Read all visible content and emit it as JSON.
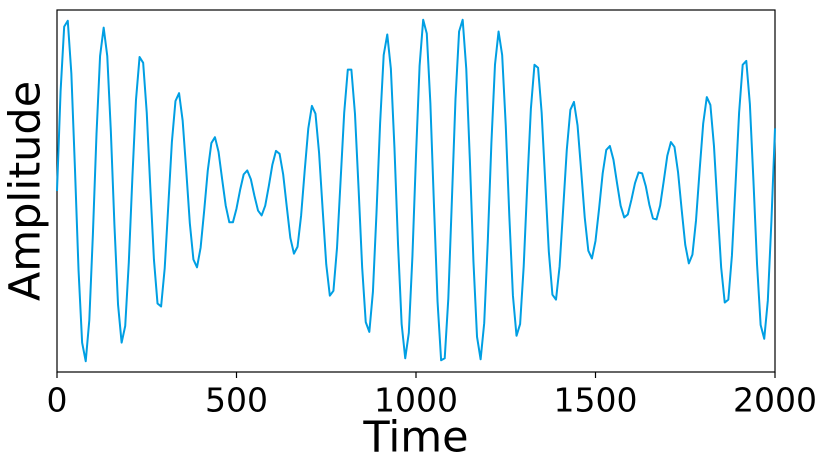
{
  "chart_data": {
    "type": "line",
    "xlabel": "Time",
    "ylabel": "Amplitude",
    "color": "#009fe3",
    "xlim": [
      0,
      2000
    ],
    "xticks": [
      0,
      500,
      1000,
      1500,
      2000
    ],
    "ylim": [
      -1.85,
      1.85
    ],
    "x": [
      0,
      10,
      20,
      30,
      40,
      50,
      60,
      70,
      80,
      90,
      100,
      110,
      120,
      130,
      140,
      150,
      160,
      170,
      180,
      190,
      200,
      210,
      220,
      230,
      240,
      250,
      260,
      270,
      280,
      290,
      300,
      310,
      320,
      330,
      340,
      350,
      360,
      370,
      380,
      390,
      400,
      410,
      420,
      430,
      440,
      450,
      460,
      470,
      480,
      490,
      500,
      510,
      520,
      530,
      540,
      550,
      560,
      570,
      580,
      590,
      600,
      610,
      620,
      630,
      640,
      650,
      660,
      670,
      680,
      690,
      700,
      710,
      720,
      730,
      740,
      750,
      760,
      770,
      780,
      790,
      800,
      810,
      820,
      830,
      840,
      850,
      860,
      870,
      880,
      890,
      900,
      910,
      920,
      930,
      940,
      950,
      960,
      970,
      980,
      990,
      1000,
      1010,
      1020,
      1030,
      1040,
      1050,
      1060,
      1070,
      1080,
      1090,
      1100,
      1110,
      1120,
      1130,
      1140,
      1150,
      1160,
      1170,
      1180,
      1190,
      1200,
      1210,
      1220,
      1230,
      1240,
      1250,
      1260,
      1270,
      1280,
      1290,
      1300,
      1310,
      1320,
      1330,
      1340,
      1350,
      1360,
      1370,
      1380,
      1390,
      1400,
      1410,
      1420,
      1430,
      1440,
      1450,
      1460,
      1470,
      1480,
      1490,
      1500,
      1510,
      1520,
      1530,
      1540,
      1550,
      1560,
      1570,
      1580,
      1590,
      1600,
      1610,
      1620,
      1630,
      1640,
      1650,
      1660,
      1670,
      1680,
      1690,
      1700,
      1710,
      1720,
      1730,
      1740,
      1750,
      1760,
      1770,
      1780,
      1790,
      1800,
      1810,
      1820,
      1830,
      1840,
      1850,
      1860,
      1870,
      1880,
      1890,
      1900,
      1910,
      1920,
      1930,
      1940,
      1950,
      1960,
      1970,
      1980,
      1990,
      2000
    ],
    "values": [
      0,
      1.02,
      1.68,
      1.74,
      1.2,
      0.23,
      -0.81,
      -1.55,
      -1.74,
      -1.32,
      -0.44,
      0.58,
      1.38,
      1.67,
      1.38,
      0.61,
      -0.35,
      -1.16,
      -1.55,
      -1.38,
      -0.73,
      0.14,
      0.93,
      1.37,
      1.31,
      0.8,
      0.03,
      -0.7,
      -1.15,
      -1.18,
      -0.79,
      -0.15,
      0.5,
      0.92,
      1.0,
      0.72,
      0.21,
      -0.33,
      -0.7,
      -0.78,
      -0.58,
      -0.2,
      0.21,
      0.49,
      0.55,
      0.4,
      0.12,
      -0.15,
      -0.32,
      -0.32,
      -0.18,
      0.01,
      0.17,
      0.21,
      0.12,
      -0.05,
      -0.2,
      -0.25,
      -0.15,
      0.05,
      0.27,
      0.41,
      0.38,
      0.17,
      -0.16,
      -0.48,
      -0.64,
      -0.57,
      -0.25,
      0.21,
      0.64,
      0.87,
      0.79,
      0.39,
      -0.19,
      -0.75,
      -1.07,
      -1.02,
      -0.58,
      0.11,
      0.8,
      1.24,
      1.24,
      0.79,
      0.03,
      -0.78,
      -1.34,
      -1.44,
      -1.03,
      -0.22,
      0.69,
      1.39,
      1.6,
      1.25,
      0.44,
      -0.55,
      -1.36,
      -1.71,
      -1.45,
      -0.67,
      0.36,
      1.28,
      1.75,
      1.61,
      0.9,
      -0.14,
      -1.13,
      -1.73,
      -1.71,
      -1.1,
      -0.09,
      0.94,
      1.63,
      1.75,
      1.25,
      0.32,
      -0.72,
      -1.49,
      -1.72,
      -1.35,
      -0.51,
      0.49,
      1.29,
      1.63,
      1.39,
      0.67,
      -0.26,
      -1.07,
      -1.48,
      -1.36,
      -0.77,
      0.07,
      0.84,
      1.29,
      1.26,
      0.8,
      0.09,
      -0.62,
      -1.06,
      -1.11,
      -0.77,
      -0.18,
      0.42,
      0.83,
      0.91,
      0.67,
      0.21,
      -0.27,
      -0.61,
      -0.69,
      -0.51,
      -0.18,
      0.18,
      0.42,
      0.46,
      0.32,
      0.08,
      -0.15,
      -0.27,
      -0.24,
      -0.09,
      0.08,
      0.19,
      0.18,
      0.05,
      -0.14,
      -0.28,
      -0.29,
      -0.15,
      0.1,
      0.36,
      0.5,
      0.45,
      0.19,
      -0.19,
      -0.55,
      -0.74,
      -0.65,
      -0.3,
      0.21,
      0.69,
      0.96,
      0.88,
      0.46,
      -0.17,
      -0.78,
      -1.14,
      -1.11,
      -0.66,
      0.06,
      0.8,
      1.29,
      1.33,
      0.89,
      0.1,
      -0.75,
      -1.37,
      -1.51,
      -1.12,
      -0.31,
      0.64
    ]
  }
}
